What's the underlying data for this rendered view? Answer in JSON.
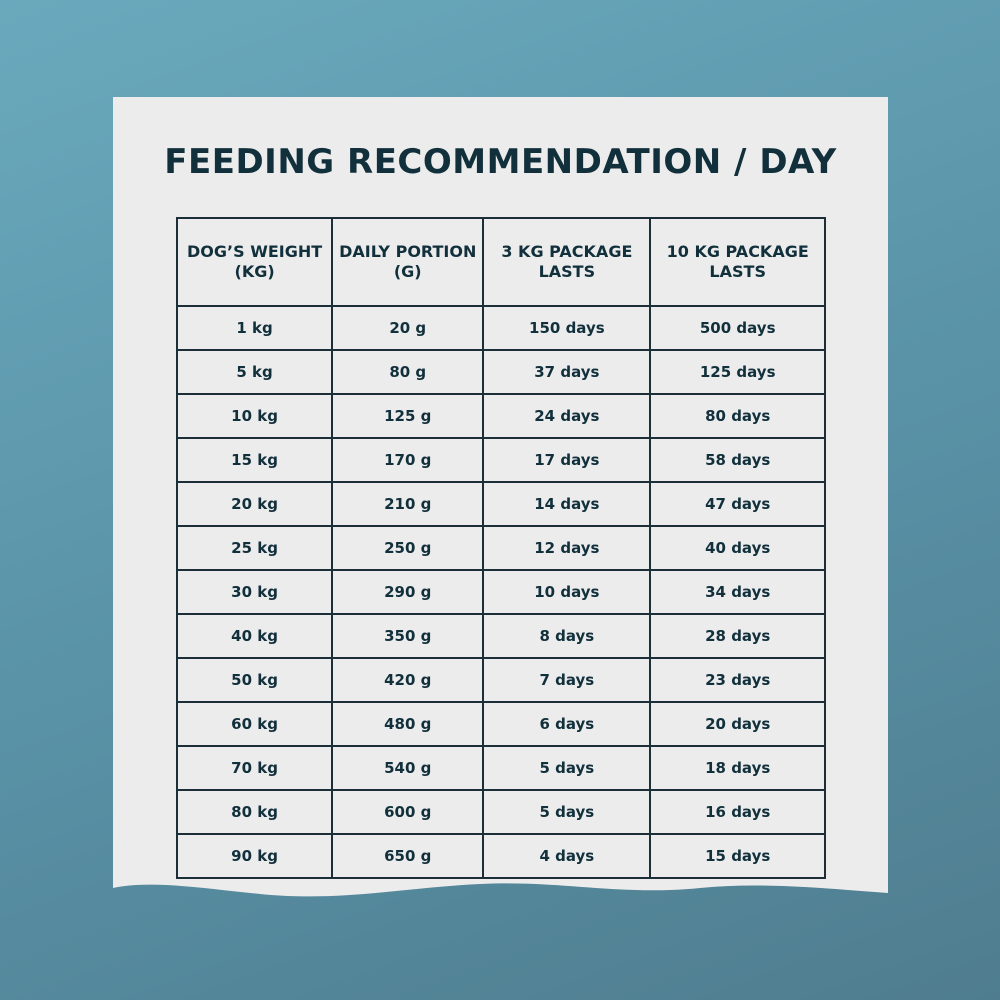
{
  "title": "FEEDING RECOMMENDATION / DAY",
  "table": {
    "header": [
      "DOG’S WEIGHT (KG)",
      "DAILY PORTION (G)",
      "3 KG PACKAGE LASTS",
      "10 KG PACKAGE LASTS"
    ],
    "rows": [
      [
        "1 kg",
        "20 g",
        "150 days",
        "500 days"
      ],
      [
        "5 kg",
        "80 g",
        "37 days",
        "125 days"
      ],
      [
        "10 kg",
        "125 g",
        "24 days",
        "80 days"
      ],
      [
        "15 kg",
        "170 g",
        "17 days",
        "58 days"
      ],
      [
        "20 kg",
        "210 g",
        "14 days",
        "47 days"
      ],
      [
        "25 kg",
        "250 g",
        "12 days",
        "40 days"
      ],
      [
        "30 kg",
        "290 g",
        "10 days",
        "34 days"
      ],
      [
        "40 kg",
        "350 g",
        "8 days",
        "28 days"
      ],
      [
        "50 kg",
        "420 g",
        "7 days",
        "23 days"
      ],
      [
        "60 kg",
        "480 g",
        "6 days",
        "20 days"
      ],
      [
        "70 kg",
        "540 g",
        "5 days",
        "18 days"
      ],
      [
        "80 kg",
        "600 g",
        "5 days",
        "16 days"
      ],
      [
        "90 kg",
        "650 g",
        "4 days",
        "15 days"
      ]
    ]
  }
}
